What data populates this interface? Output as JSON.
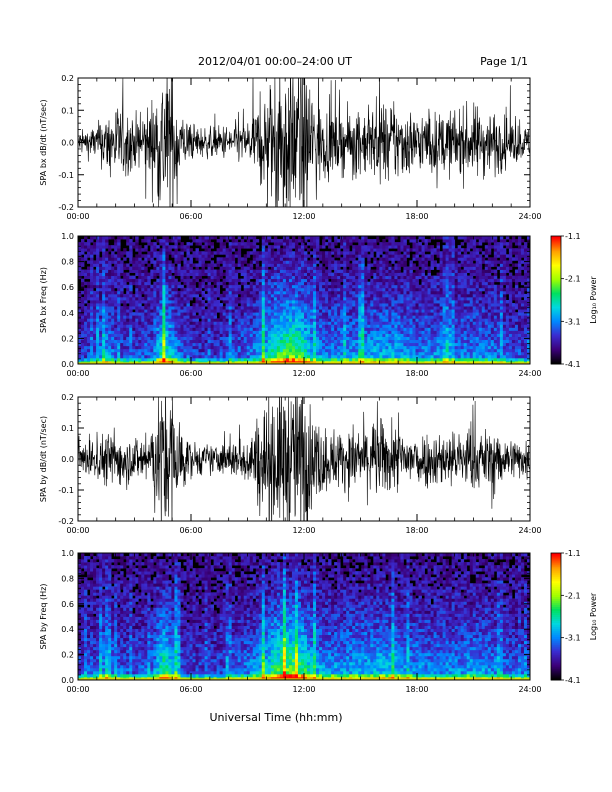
{
  "header": {
    "title": "2012/04/01   00:00–24:00 UT",
    "page": "Page 1/1"
  },
  "footer": {
    "xlabel": "Universal Time (hh:mm)"
  },
  "colorbar": {
    "label": "Log₁₀ Power",
    "ticks": [
      "-1.1",
      "-2.1",
      "-3.1",
      "-4.1"
    ],
    "range": [
      -4.1,
      -1.1
    ],
    "colors": [
      "#000000",
      "#3c007a",
      "#3a2cd0",
      "#0088ff",
      "#00d8e0",
      "#00e060",
      "#a0ff00",
      "#ffff00",
      "#ffa000",
      "#ff0000"
    ]
  },
  "chart_data": [
    {
      "type": "line",
      "ylabel": "SPA bx dB/dt (nT/sec)",
      "xlim": [
        0,
        24
      ],
      "ylim": [
        -0.2,
        0.2
      ],
      "xtick_labels": [
        "00:00",
        "06:00",
        "12:00",
        "18:00",
        "24:00"
      ],
      "ytick_labels": [
        "-0.2",
        "-0.1",
        "0.0",
        "0.1",
        "0.2"
      ],
      "envelope": {
        "hours": [
          0,
          1,
          2,
          3,
          4,
          4.5,
          5,
          5.5,
          6,
          7,
          8,
          9,
          9.5,
          10,
          10.5,
          11,
          11.5,
          12,
          12.5,
          13,
          14,
          15,
          16,
          17,
          18,
          19,
          20,
          21,
          22,
          23,
          24
        ],
        "amplitude": [
          0.03,
          0.05,
          0.11,
          0.07,
          0.12,
          0.22,
          0.22,
          0.08,
          0.05,
          0.04,
          0.05,
          0.06,
          0.1,
          0.14,
          0.22,
          0.22,
          0.22,
          0.22,
          0.16,
          0.1,
          0.08,
          0.09,
          0.1,
          0.11,
          0.08,
          0.08,
          0.09,
          0.1,
          0.09,
          0.06,
          0.04
        ]
      }
    },
    {
      "type": "heatmap",
      "ylabel": "SPA bx Freq (Hz)",
      "xlim": [
        0,
        24
      ],
      "ylim": [
        0,
        1.0
      ],
      "xtick_labels": [
        "00:00",
        "06:00",
        "12:00",
        "18:00",
        "24:00"
      ],
      "ytick_labels": [
        "0.0",
        "0.2",
        "0.4",
        "0.6",
        "0.8",
        "1.0"
      ],
      "activity": {
        "hours": [
          0,
          1,
          1.5,
          2,
          3,
          4,
          4.5,
          5,
          5.5,
          6,
          7,
          8,
          9,
          10,
          10.5,
          11,
          11.5,
          12,
          12.5,
          13,
          14,
          15,
          16,
          17,
          18,
          19,
          20,
          21,
          22,
          23,
          24
        ],
        "level": [
          0.2,
          0.3,
          0.55,
          0.3,
          0.25,
          0.35,
          0.85,
          0.6,
          0.3,
          0.25,
          0.2,
          0.3,
          0.35,
          0.6,
          0.85,
          0.95,
          1.0,
          0.8,
          0.55,
          0.45,
          0.45,
          0.5,
          0.55,
          0.55,
          0.4,
          0.45,
          0.4,
          0.45,
          0.4,
          0.3,
          0.25
        ]
      }
    },
    {
      "type": "line",
      "ylabel": "SPA by dB/dt (nT/sec)",
      "xlim": [
        0,
        24
      ],
      "ylim": [
        -0.2,
        0.2
      ],
      "xtick_labels": [
        "00:00",
        "06:00",
        "12:00",
        "18:00",
        "24:00"
      ],
      "ytick_labels": [
        "-0.2",
        "-0.1",
        "0.0",
        "0.1",
        "0.2"
      ],
      "envelope": {
        "hours": [
          0,
          1,
          2,
          3,
          4,
          4.5,
          5,
          5.5,
          6,
          7,
          8,
          9,
          9.5,
          10,
          10.5,
          11,
          11.5,
          12,
          12.5,
          13,
          14,
          15,
          16,
          17,
          18,
          19,
          20,
          21,
          22,
          23,
          24
        ],
        "amplitude": [
          0.04,
          0.06,
          0.09,
          0.06,
          0.1,
          0.22,
          0.22,
          0.09,
          0.05,
          0.04,
          0.05,
          0.07,
          0.12,
          0.18,
          0.22,
          0.22,
          0.22,
          0.22,
          0.13,
          0.1,
          0.08,
          0.1,
          0.11,
          0.09,
          0.08,
          0.08,
          0.08,
          0.09,
          0.08,
          0.06,
          0.05
        ]
      }
    },
    {
      "type": "heatmap",
      "ylabel": "SPA by Freq (Hz)",
      "xlim": [
        0,
        24
      ],
      "ylim": [
        0,
        1.0
      ],
      "xtick_labels": [
        "00:00",
        "06:00",
        "12:00",
        "18:00",
        "24:00"
      ],
      "ytick_labels": [
        "0.0",
        "0.2",
        "0.4",
        "0.6",
        "0.8",
        "1.0"
      ],
      "activity": {
        "hours": [
          0,
          1,
          1.5,
          2,
          3,
          4,
          4.5,
          5,
          5.5,
          6,
          7,
          8,
          9,
          10,
          10.5,
          11,
          11.5,
          12,
          12.5,
          13,
          14,
          15,
          16,
          17,
          18,
          19,
          20,
          21,
          22,
          23,
          24
        ],
        "level": [
          0.25,
          0.35,
          0.5,
          0.35,
          0.3,
          0.4,
          0.9,
          0.65,
          0.3,
          0.25,
          0.25,
          0.3,
          0.4,
          0.65,
          0.9,
          1.0,
          1.0,
          0.85,
          0.6,
          0.5,
          0.5,
          0.55,
          0.6,
          0.55,
          0.45,
          0.45,
          0.45,
          0.5,
          0.45,
          0.35,
          0.3
        ]
      }
    }
  ]
}
